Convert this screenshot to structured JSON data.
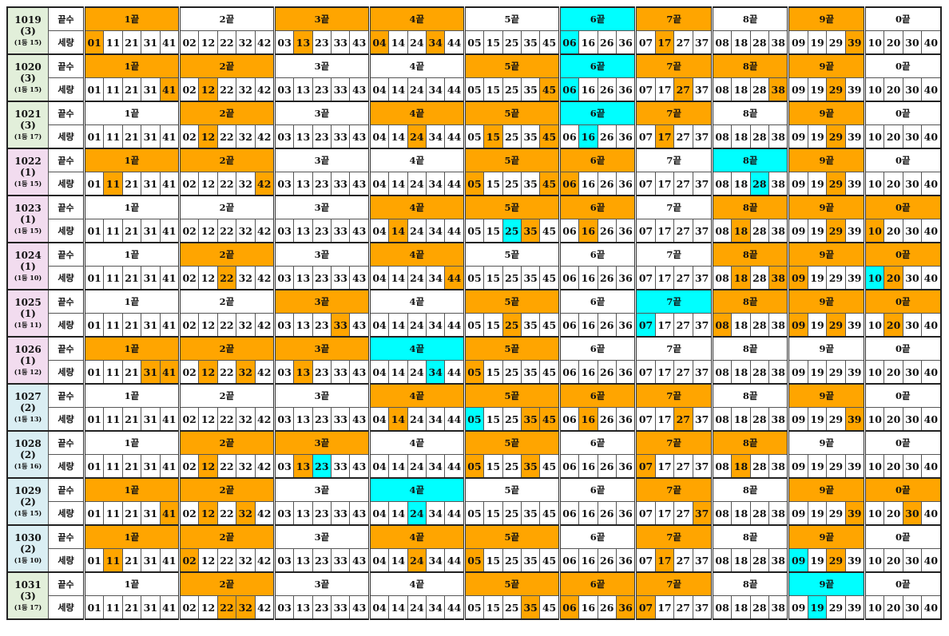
{
  "labels": {
    "header_row": "끝수",
    "number_row": "세량"
  },
  "colors": {
    "hit": "#ffa500",
    "bonus": "#00ffff",
    "group_3": "#e2efda",
    "group_1": "#f2dcef",
    "group_2": "#daeef3"
  },
  "groups": [
    {
      "title": "1끝",
      "numbers": [
        "01",
        "11",
        "21",
        "31",
        "41"
      ]
    },
    {
      "title": "2끝",
      "numbers": [
        "02",
        "12",
        "22",
        "32",
        "42"
      ]
    },
    {
      "title": "3끝",
      "numbers": [
        "03",
        "13",
        "23",
        "33",
        "43"
      ]
    },
    {
      "title": "4끝",
      "numbers": [
        "04",
        "14",
        "24",
        "34",
        "44"
      ]
    },
    {
      "title": "5끝",
      "numbers": [
        "05",
        "15",
        "25",
        "35",
        "45"
      ]
    },
    {
      "title": "6끝",
      "numbers": [
        "06",
        "16",
        "26",
        "36"
      ]
    },
    {
      "title": "7끝",
      "numbers": [
        "07",
        "17",
        "27",
        "37"
      ]
    },
    {
      "title": "8끝",
      "numbers": [
        "08",
        "18",
        "28",
        "38"
      ]
    },
    {
      "title": "9끝",
      "numbers": [
        "09",
        "19",
        "29",
        "39"
      ]
    },
    {
      "title": "0끝",
      "numbers": [
        "10",
        "20",
        "30",
        "40"
      ]
    }
  ],
  "rounds": [
    {
      "round": "1019",
      "count": "(3)",
      "note": "(1등 15)",
      "tint": "green",
      "headers": [
        "o",
        "",
        "o",
        "o",
        "",
        "c",
        "o",
        "",
        "o",
        ""
      ],
      "hits": [
        "01",
        "13",
        "04",
        "34",
        "17",
        "39"
      ],
      "bonus": [
        "06"
      ]
    },
    {
      "round": "1020",
      "count": "(3)",
      "note": "(1등 15)",
      "tint": "green",
      "headers": [
        "o",
        "o",
        "",
        "",
        "o",
        "c",
        "o",
        "o",
        "o",
        ""
      ],
      "hits": [
        "41",
        "12",
        "45",
        "27",
        "38",
        "29"
      ],
      "bonus": [
        "06"
      ]
    },
    {
      "round": "1021",
      "count": "(3)",
      "note": "(1등 17)",
      "tint": "green",
      "headers": [
        "",
        "o",
        "",
        "o",
        "o",
        "c",
        "o",
        "",
        "o",
        ""
      ],
      "hits": [
        "12",
        "24",
        "15",
        "45",
        "17",
        "29"
      ],
      "bonus": [
        "16"
      ]
    },
    {
      "round": "1022",
      "count": "(1)",
      "note": "(1등 15)",
      "tint": "pink",
      "headers": [
        "o",
        "o",
        "",
        "",
        "o",
        "o",
        "",
        "c",
        "o",
        ""
      ],
      "hits": [
        "11",
        "42",
        "05",
        "45",
        "06",
        "29"
      ],
      "bonus": [
        "28"
      ]
    },
    {
      "round": "1023",
      "count": "(1)",
      "note": "(1등 15)",
      "tint": "pink",
      "headers": [
        "",
        "",
        "",
        "o",
        "o",
        "o",
        "",
        "o",
        "o",
        "o"
      ],
      "hits": [
        "14",
        "35",
        "16",
        "18",
        "29",
        "10"
      ],
      "bonus": [
        "25"
      ]
    },
    {
      "round": "1024",
      "count": "(1)",
      "note": "(1등 10)",
      "tint": "pink",
      "headers": [
        "",
        "o",
        "",
        "o",
        "",
        "",
        "",
        "o",
        "o",
        "o"
      ],
      "hits": [
        "22",
        "44",
        "18",
        "38",
        "09",
        "20"
      ],
      "bonus": [
        "10"
      ]
    },
    {
      "round": "1025",
      "count": "(1)",
      "note": "(1등 11)",
      "tint": "pink",
      "headers": [
        "",
        "",
        "o",
        "",
        "o",
        "",
        "c",
        "o",
        "o",
        "o"
      ],
      "hits": [
        "33",
        "25",
        "08",
        "09",
        "29",
        "20"
      ],
      "bonus": [
        "07"
      ]
    },
    {
      "round": "1026",
      "count": "(1)",
      "note": "(1등 12)",
      "tint": "pink",
      "headers": [
        "o",
        "o",
        "o",
        "c",
        "o",
        "",
        "",
        "",
        "",
        ""
      ],
      "hits": [
        "31",
        "41",
        "12",
        "32",
        "13",
        "05"
      ],
      "bonus": [
        "34"
      ]
    },
    {
      "round": "1027",
      "count": "(2)",
      "note": "(1등 13)",
      "tint": "blue",
      "headers": [
        "",
        "",
        "",
        "o",
        "o",
        "o",
        "o",
        "",
        "o",
        ""
      ],
      "hits": [
        "14",
        "35",
        "45",
        "16",
        "27",
        "39"
      ],
      "bonus": [
        "05"
      ]
    },
    {
      "round": "1028",
      "count": "(2)",
      "note": "(1등 16)",
      "tint": "blue",
      "headers": [
        "",
        "o",
        "o",
        "",
        "o",
        "",
        "o",
        "o",
        "",
        ""
      ],
      "hits": [
        "12",
        "13",
        "05",
        "35",
        "07",
        "18"
      ],
      "bonus": [
        "23"
      ]
    },
    {
      "round": "1029",
      "count": "(2)",
      "note": "(1등 15)",
      "tint": "blue",
      "headers": [
        "o",
        "o",
        "",
        "c",
        "",
        "",
        "o",
        "",
        "o",
        "o"
      ],
      "hits": [
        "41",
        "12",
        "32",
        "37",
        "39",
        "30"
      ],
      "bonus": [
        "24"
      ]
    },
    {
      "round": "1030",
      "count": "(2)",
      "note": "(1등 10)",
      "tint": "blue",
      "headers": [
        "o",
        "o",
        "",
        "o",
        "o",
        "",
        "o",
        "",
        "o",
        ""
      ],
      "hits": [
        "11",
        "02",
        "24",
        "05",
        "17",
        "29"
      ],
      "bonus": [
        "09"
      ]
    },
    {
      "round": "1031",
      "count": "(3)",
      "note": "(1등 17)",
      "tint": "green",
      "headers": [
        "",
        "o",
        "",
        "",
        "o",
        "o",
        "o",
        "",
        "c",
        ""
      ],
      "hits": [
        "22",
        "32",
        "35",
        "06",
        "36",
        "07"
      ],
      "bonus": [
        "19"
      ]
    }
  ]
}
